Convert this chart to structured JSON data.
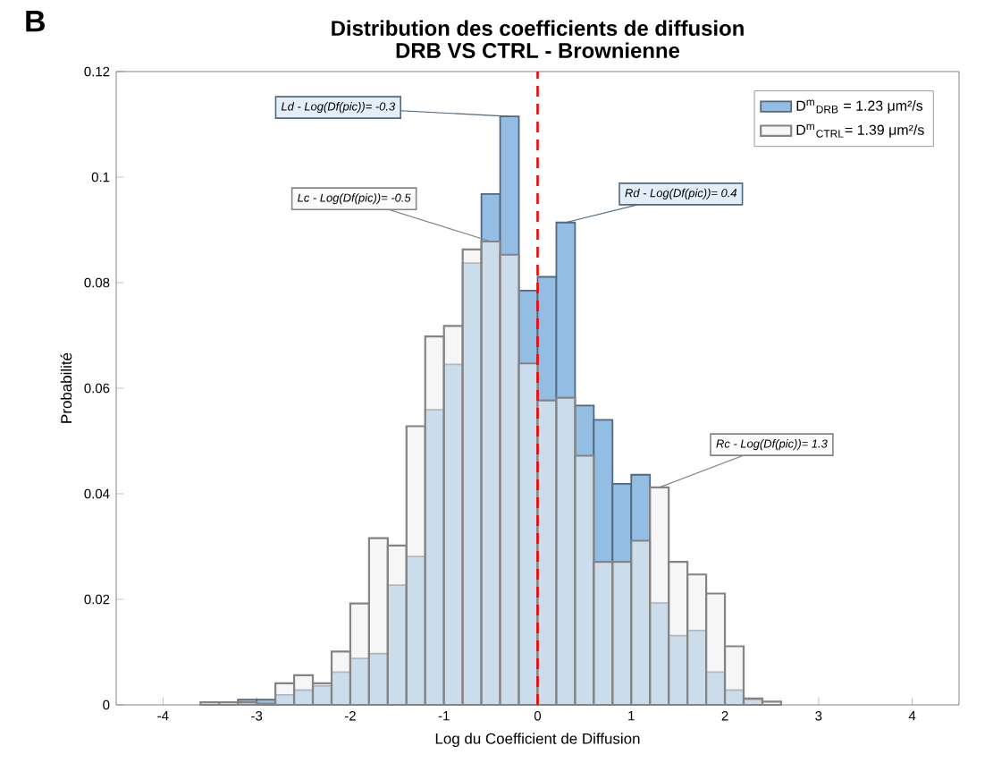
{
  "chart_data": {
    "type": "histogram",
    "title": "Distribution des coefficients de diffusion",
    "subtitle": "DRB VS CTRL - Brownienne",
    "xlabel": "Log du Coefficient de Diffusion",
    "ylabel": "Probabilité",
    "bins": [
      -3.6,
      -3.4,
      -3.2,
      -3.0,
      -2.8,
      -2.6,
      -2.4,
      -2.2,
      -2.0,
      -1.8,
      -1.6,
      -1.4,
      -1.2,
      -1.0,
      -0.8,
      -0.6,
      -0.4,
      -0.2,
      0.0,
      0.2,
      0.4,
      0.6,
      0.8,
      1.0,
      1.2,
      1.4,
      1.6,
      1.8,
      2.0,
      2.2,
      2.4,
      2.6
    ],
    "series": [
      {
        "name": "D$^{m}$$_{DRB}$ = 1.23 μm²/s",
        "color": "#94bde3",
        "values": [
          0,
          0,
          0.001,
          0.001,
          0.0019,
          0.0028,
          0.0036,
          0.0062,
          0.0088,
          0.0097,
          0.0227,
          0.0281,
          0.0559,
          0.0645,
          0.0837,
          0.0968,
          0.1115,
          0.0785,
          0.0811,
          0.0914,
          0.0567,
          0.054,
          0.0419,
          0.0436,
          0.0193,
          0.0131,
          0.0141,
          0.0062,
          0.0028,
          0.001,
          0
        ]
      },
      {
        "name": "D$^{m}$$_{CTRL}$= 1.39 μm²/s",
        "color": "#f0f0f0",
        "values": [
          0.0005,
          0.0005,
          0.0005,
          0.0002,
          0.0041,
          0.0056,
          0.0041,
          0.0101,
          0.0192,
          0.0316,
          0.0302,
          0.0528,
          0.0698,
          0.0718,
          0.0863,
          0.0878,
          0.0853,
          0.0647,
          0.0577,
          0.0582,
          0.0472,
          0.0271,
          0.0271,
          0.0311,
          0.0412,
          0.0271,
          0.0247,
          0.0211,
          0.0111,
          0.0012,
          0.0006
        ]
      }
    ],
    "xlim": [
      -4.5,
      4.5
    ],
    "xticks": [
      -4,
      -3,
      -2,
      -1,
      0,
      1,
      2,
      3,
      4
    ],
    "ylim": [
      0,
      0.12
    ],
    "yticks": [
      0,
      0.02,
      0.04,
      0.06,
      0.08,
      0.1,
      0.12
    ],
    "ref_lines": [
      {
        "axis": "x",
        "value": 0,
        "color": "#ff0000",
        "line_style": "dashed"
      }
    ],
    "legend": "top right",
    "annotations": [
      {
        "text": "Ld - Log(Df(pic))= -0.3",
        "x": -0.3,
        "y": 0.1115
      },
      {
        "text": "Lc - Log(Df(pic))= -0.5",
        "x": -0.5,
        "y": 0.0878
      },
      {
        "text": "Rd - Log(Df(pic))= 0.4",
        "x": 0.3,
        "y": 0.0914
      },
      {
        "text": "Rc - Log(Df(pic))= 1.3",
        "x": 1.3,
        "y": 0.0412
      },
      "B"
    ]
  }
}
